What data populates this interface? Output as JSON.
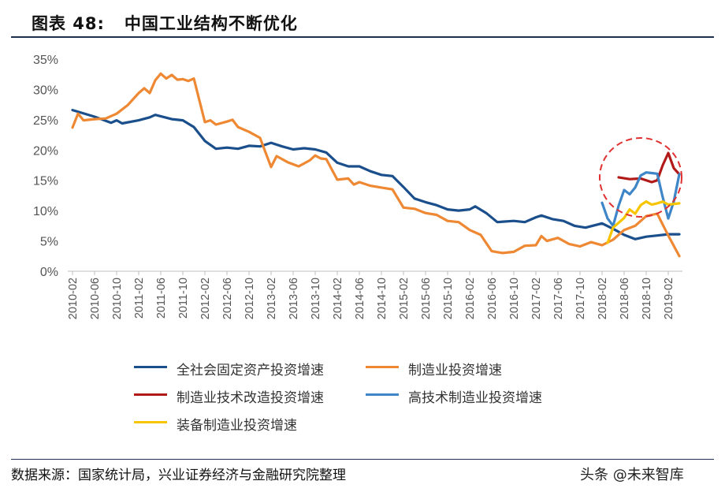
{
  "header": {
    "title": "图表 48:   中国工业结构不断优化"
  },
  "footer": {
    "source": "数据来源：国家统计局，兴业证券经济与金融研究院整理",
    "watermark": "头条 @未来智库"
  },
  "colors": {
    "series1": "#1a4f8c",
    "series2": "#ee8833",
    "series3": "#b21a1a",
    "series4": "#3f86c8",
    "series5": "#f7c500",
    "highlight": "#e03030",
    "axis": "#bfbfbf"
  },
  "chart_data": {
    "type": "line",
    "ylim": [
      0,
      35
    ],
    "ytick_labels": [
      "0%",
      "5%",
      "10%",
      "15%",
      "20%",
      "25%",
      "30%",
      "35%"
    ],
    "x_tick_labels": [
      "2010-02",
      "2010-06",
      "2010-10",
      "2011-02",
      "2011-06",
      "2011-10",
      "2012-02",
      "2012-06",
      "2012-10",
      "2013-02",
      "2013-06",
      "2013-10",
      "2014-02",
      "2014-06",
      "2014-10",
      "2015-02",
      "2015-06",
      "2015-10",
      "2016-02",
      "2016-06",
      "2016-10",
      "2017-02",
      "2017-06",
      "2017-10",
      "2018-02",
      "2018-06",
      "2018-10",
      "2019-02"
    ],
    "series": [
      {
        "name": "全社会固定资产投资增速",
        "color_key": "series1",
        "points": [
          [
            "2010-02",
            26.6
          ],
          [
            "2010-06",
            25.5
          ],
          [
            "2010-09",
            24.5
          ],
          [
            "2010-10",
            24.9
          ],
          [
            "2010-11",
            24.4
          ],
          [
            "2011-02",
            24.9
          ],
          [
            "2011-04",
            25.4
          ],
          [
            "2011-05",
            25.8
          ],
          [
            "2011-08",
            25.1
          ],
          [
            "2011-10",
            24.9
          ],
          [
            "2011-12",
            23.8
          ],
          [
            "2012-02",
            21.5
          ],
          [
            "2012-04",
            20.2
          ],
          [
            "2012-06",
            20.4
          ],
          [
            "2012-08",
            20.2
          ],
          [
            "2012-10",
            20.7
          ],
          [
            "2012-12",
            20.6
          ],
          [
            "2013-02",
            21.2
          ],
          [
            "2013-04",
            20.6
          ],
          [
            "2013-06",
            20.1
          ],
          [
            "2013-08",
            20.3
          ],
          [
            "2013-10",
            20.1
          ],
          [
            "2013-12",
            19.6
          ],
          [
            "2014-02",
            17.9
          ],
          [
            "2014-04",
            17.3
          ],
          [
            "2014-06",
            17.3
          ],
          [
            "2014-08",
            16.5
          ],
          [
            "2014-10",
            15.9
          ],
          [
            "2014-12",
            15.7
          ],
          [
            "2015-02",
            13.9
          ],
          [
            "2015-04",
            12.0
          ],
          [
            "2015-06",
            11.4
          ],
          [
            "2015-08",
            10.9
          ],
          [
            "2015-10",
            10.2
          ],
          [
            "2015-12",
            10.0
          ],
          [
            "2016-02",
            10.2
          ],
          [
            "2016-03",
            10.7
          ],
          [
            "2016-05",
            9.6
          ],
          [
            "2016-07",
            8.1
          ],
          [
            "2016-10",
            8.3
          ],
          [
            "2016-12",
            8.1
          ],
          [
            "2017-02",
            8.9
          ],
          [
            "2017-03",
            9.2
          ],
          [
            "2017-05",
            8.6
          ],
          [
            "2017-07",
            8.3
          ],
          [
            "2017-09",
            7.5
          ],
          [
            "2017-11",
            7.2
          ],
          [
            "2018-02",
            7.9
          ],
          [
            "2018-04",
            7.0
          ],
          [
            "2018-06",
            6.0
          ],
          [
            "2018-08",
            5.3
          ],
          [
            "2018-10",
            5.7
          ],
          [
            "2018-12",
            5.9
          ],
          [
            "2019-02",
            6.1
          ],
          [
            "2019-04",
            6.1
          ]
        ]
      },
      {
        "name": "制造业投资增速",
        "color_key": "series2",
        "points": [
          [
            "2010-02",
            23.7
          ],
          [
            "2010-03",
            26.0
          ],
          [
            "2010-04",
            24.9
          ],
          [
            "2010-06",
            25.1
          ],
          [
            "2010-08",
            25.2
          ],
          [
            "2010-10",
            26.0
          ],
          [
            "2010-12",
            27.4
          ],
          [
            "2011-02",
            29.4
          ],
          [
            "2011-03",
            30.2
          ],
          [
            "2011-04",
            29.4
          ],
          [
            "2011-05",
            31.5
          ],
          [
            "2011-06",
            32.6
          ],
          [
            "2011-07",
            31.8
          ],
          [
            "2011-08",
            32.4
          ],
          [
            "2011-09",
            31.6
          ],
          [
            "2011-10",
            31.7
          ],
          [
            "2011-11",
            31.4
          ],
          [
            "2011-12",
            31.8
          ],
          [
            "2012-02",
            24.6
          ],
          [
            "2012-03",
            24.9
          ],
          [
            "2012-04",
            24.2
          ],
          [
            "2012-06",
            24.7
          ],
          [
            "2012-07",
            25.0
          ],
          [
            "2012-08",
            23.8
          ],
          [
            "2012-10",
            23.0
          ],
          [
            "2012-12",
            22.0
          ],
          [
            "2013-02",
            17.2
          ],
          [
            "2013-03",
            19.0
          ],
          [
            "2013-05",
            18.0
          ],
          [
            "2013-07",
            17.3
          ],
          [
            "2013-09",
            18.3
          ],
          [
            "2013-10",
            19.1
          ],
          [
            "2013-11",
            18.6
          ],
          [
            "2013-12",
            18.5
          ],
          [
            "2014-02",
            15.1
          ],
          [
            "2014-04",
            15.3
          ],
          [
            "2014-05",
            14.3
          ],
          [
            "2014-06",
            14.7
          ],
          [
            "2014-08",
            14.1
          ],
          [
            "2014-10",
            13.8
          ],
          [
            "2014-12",
            13.5
          ],
          [
            "2015-02",
            10.5
          ],
          [
            "2015-04",
            10.3
          ],
          [
            "2015-06",
            9.6
          ],
          [
            "2015-08",
            9.3
          ],
          [
            "2015-10",
            8.3
          ],
          [
            "2015-12",
            8.1
          ],
          [
            "2016-02",
            6.8
          ],
          [
            "2016-04",
            6.0
          ],
          [
            "2016-06",
            3.3
          ],
          [
            "2016-08",
            3.0
          ],
          [
            "2016-10",
            3.2
          ],
          [
            "2016-12",
            4.2
          ],
          [
            "2017-02",
            4.3
          ],
          [
            "2017-03",
            5.8
          ],
          [
            "2017-04",
            5.0
          ],
          [
            "2017-06",
            5.5
          ],
          [
            "2017-08",
            4.5
          ],
          [
            "2017-10",
            4.1
          ],
          [
            "2017-12",
            4.8
          ],
          [
            "2018-02",
            4.3
          ],
          [
            "2018-04",
            5.2
          ],
          [
            "2018-06",
            6.8
          ],
          [
            "2018-08",
            7.5
          ],
          [
            "2018-10",
            9.1
          ],
          [
            "2018-12",
            9.5
          ],
          [
            "2019-02",
            5.9
          ],
          [
            "2019-04",
            2.5
          ]
        ]
      },
      {
        "name": "制造业技术改造投资增速",
        "color_key": "series3",
        "points": [
          [
            "2018-05",
            15.5
          ],
          [
            "2018-07",
            15.2
          ],
          [
            "2018-09",
            15.3
          ],
          [
            "2018-11",
            14.7
          ],
          [
            "2018-12",
            15.0
          ],
          [
            "2019-01",
            17.5
          ],
          [
            "2019-02",
            19.5
          ],
          [
            "2019-03",
            17.0
          ],
          [
            "2019-04",
            16.0
          ]
        ]
      },
      {
        "name": "高技术制造业投资增速",
        "color_key": "series4",
        "points": [
          [
            "2018-02",
            11.3
          ],
          [
            "2018-03",
            8.7
          ],
          [
            "2018-04",
            7.5
          ],
          [
            "2018-05",
            10.8
          ],
          [
            "2018-06",
            13.4
          ],
          [
            "2018-07",
            12.7
          ],
          [
            "2018-08",
            13.8
          ],
          [
            "2018-09",
            15.8
          ],
          [
            "2018-10",
            16.3
          ],
          [
            "2018-11",
            16.2
          ],
          [
            "2018-12",
            16.1
          ],
          [
            "2019-01",
            12.2
          ],
          [
            "2019-02",
            8.7
          ],
          [
            "2019-03",
            11.5
          ],
          [
            "2019-04",
            16.0
          ]
        ]
      },
      {
        "name": "装备制造业投资增速",
        "color_key": "series5",
        "points": [
          [
            "2018-03",
            4.7
          ],
          [
            "2018-04",
            7.2
          ],
          [
            "2018-06",
            8.8
          ],
          [
            "2018-07",
            10.2
          ],
          [
            "2018-08",
            9.5
          ],
          [
            "2018-09",
            10.9
          ],
          [
            "2018-10",
            11.5
          ],
          [
            "2018-11",
            11.0
          ],
          [
            "2018-12",
            11.2
          ],
          [
            "2019-01",
            11.5
          ],
          [
            "2019-02",
            11.0
          ],
          [
            "2019-04",
            11.2
          ]
        ]
      }
    ]
  }
}
